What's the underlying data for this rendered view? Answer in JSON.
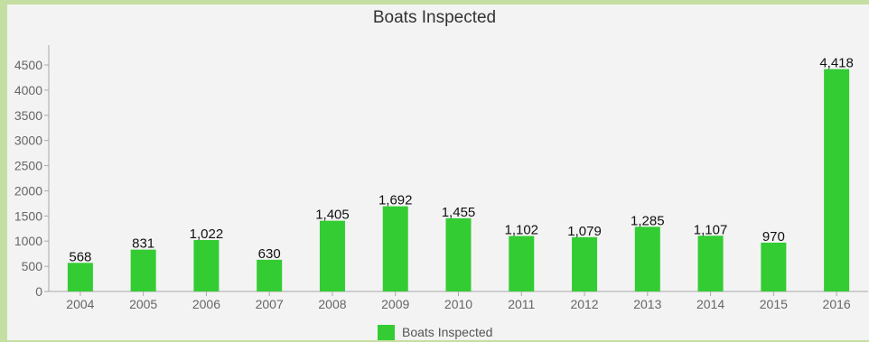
{
  "colors": {
    "bar": "#33cc33",
    "axis": "#aaaaaa",
    "label": "#666666",
    "value_label": "#111111"
  },
  "chart_data": {
    "type": "bar",
    "title": "Boats Inspected",
    "xlabel": "",
    "ylabel": "",
    "categories": [
      "2004",
      "2005",
      "2006",
      "2007",
      "2008",
      "2009",
      "2010",
      "2011",
      "2012",
      "2013",
      "2014",
      "2015",
      "2016"
    ],
    "series": [
      {
        "name": "Boats Inspected",
        "values": [
          568,
          831,
          1022,
          630,
          1405,
          1692,
          1455,
          1102,
          1079,
          1285,
          1107,
          970,
          4418
        ],
        "labels": [
          "568",
          "831",
          "1,022",
          "630",
          "1,405",
          "1,692",
          "1,455",
          "1,102",
          "1,079",
          "1,285",
          "1,107",
          "970",
          "4,418"
        ]
      }
    ],
    "ylim": [
      0,
      4500
    ],
    "yticks": [
      0,
      500,
      1000,
      1500,
      2000,
      2500,
      3000,
      3500,
      4000,
      4500
    ],
    "grid": false,
    "legend": "bottom"
  }
}
